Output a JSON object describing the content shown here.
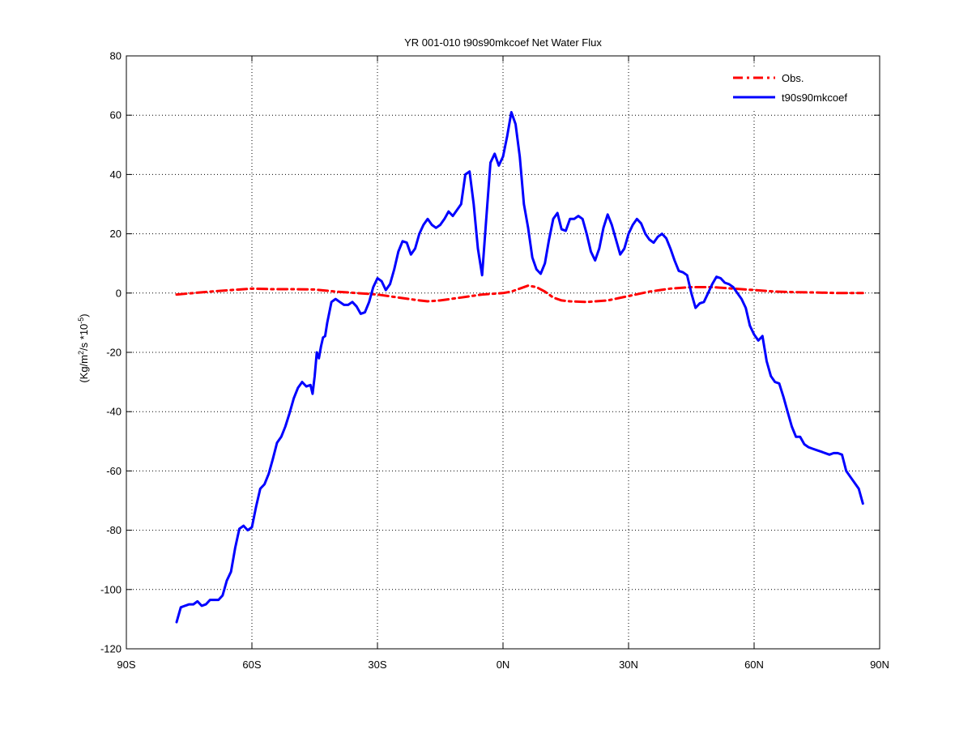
{
  "chart_data": {
    "type": "line",
    "title": "YR 001-010 t90s90mkcoef  Net Water Flux",
    "xlabel": "",
    "ylabel": "(Kg/m²/s *10⁻⁵)",
    "ylabel_parts": {
      "prefix": "(Kg/m",
      "sup1": "2",
      "middle": "/s *10",
      "sup2": "-5",
      "suffix": ")"
    },
    "xlim": [
      -90,
      90
    ],
    "ylim": [
      -120,
      80
    ],
    "x_ticks": [
      -90,
      -60,
      -30,
      0,
      30,
      60,
      90
    ],
    "x_tick_labels": [
      "90S",
      "60S",
      "30S",
      "0N",
      "30N",
      "60N",
      "90N"
    ],
    "y_ticks": [
      -120,
      -100,
      -80,
      -60,
      -40,
      -20,
      0,
      20,
      40,
      60,
      80
    ],
    "y_tick_labels": [
      "-120",
      "-100",
      "-80",
      "-60",
      "-40",
      "-20",
      "0",
      "20",
      "40",
      "60",
      "80"
    ],
    "grid": true,
    "legend_position": "top-right",
    "series": [
      {
        "name": "Obs.",
        "color": "#ff0000",
        "style": "dash-dot",
        "x": [
          -78,
          -70,
          -65,
          -60,
          -55,
          -50,
          -45,
          -40,
          -35,
          -30,
          -25,
          -20,
          -18,
          -15,
          -10,
          -5,
          0,
          2,
          4,
          6,
          8,
          10,
          12,
          14,
          16,
          20,
          25,
          30,
          35,
          40,
          45,
          50,
          55,
          60,
          65,
          70,
          75,
          80,
          85,
          86
        ],
        "y": [
          -0.5,
          0.5,
          1,
          1.5,
          1.3,
          1.3,
          1.2,
          0.5,
          0,
          -0.5,
          -1.5,
          -2.5,
          -2.8,
          -2.5,
          -1.5,
          -0.5,
          0,
          0.5,
          1.5,
          2.5,
          2,
          0.5,
          -1.5,
          -2.5,
          -2.8,
          -3,
          -2.5,
          -1,
          0.5,
          1.5,
          2,
          2,
          1.5,
          1,
          0.5,
          0.3,
          0.2,
          0,
          0,
          0
        ]
      },
      {
        "name": "t90s90mkcoef",
        "color": "#0000ff",
        "style": "solid",
        "x": [
          -78,
          -77,
          -76,
          -75,
          -74,
          -73,
          -72,
          -71,
          -70,
          -69,
          -68,
          -67,
          -66,
          -65,
          -64,
          -63,
          -62,
          -61,
          -60,
          -59,
          -58,
          -57,
          -56,
          -55,
          -54,
          -53,
          -52,
          -51,
          -50,
          -49,
          -48,
          -47,
          -46,
          -45.5,
          -45,
          -44.5,
          -44,
          -43.5,
          -43,
          -42.5,
          -42,
          -41,
          -40,
          -39,
          -38,
          -37,
          -36,
          -35,
          -34,
          -33,
          -32,
          -31,
          -30,
          -29,
          -28,
          -27,
          -26,
          -25,
          -24,
          -23,
          -22,
          -21,
          -20,
          -19,
          -18,
          -17,
          -16,
          -15,
          -14,
          -13,
          -12,
          -11,
          -10,
          -9,
          -8,
          -7,
          -6,
          -5,
          -4,
          -3,
          -2,
          -1,
          0,
          1,
          2,
          3,
          4,
          5,
          6,
          7,
          8,
          9,
          10,
          11,
          12,
          13,
          14,
          15,
          16,
          17,
          18,
          19,
          20,
          21,
          22,
          23,
          24,
          25,
          26,
          27,
          28,
          29,
          30,
          31,
          32,
          33,
          34,
          35,
          36,
          37,
          38,
          39,
          40,
          41,
          42,
          43,
          44,
          45,
          46,
          47,
          48,
          49,
          50,
          51,
          52,
          53,
          54,
          55,
          56,
          57,
          58,
          59,
          60,
          61,
          62,
          63,
          64,
          65,
          66,
          67,
          68,
          69,
          70,
          71,
          72,
          73,
          74,
          75,
          76,
          77,
          78,
          79,
          80,
          81,
          82,
          83,
          84,
          85,
          86
        ],
        "y": [
          -111,
          -106,
          -105.5,
          -105,
          -105,
          -104,
          -105.5,
          -105,
          -103.5,
          -103.5,
          -103.5,
          -102,
          -97,
          -94,
          -86,
          -79.5,
          -78.5,
          -80,
          -79,
          -72,
          -66,
          -64.5,
          -61,
          -56,
          -50.5,
          -48.5,
          -45,
          -40.5,
          -35.5,
          -32,
          -30,
          -31.5,
          -31,
          -34,
          -28,
          -20,
          -22,
          -18,
          -15,
          -14.5,
          -10,
          -3,
          -2,
          -3,
          -4,
          -4,
          -3,
          -4.5,
          -7,
          -6.5,
          -3,
          2,
          5,
          4,
          1,
          3,
          8,
          14,
          17.5,
          17,
          13,
          15,
          20,
          23,
          25,
          23,
          22,
          23,
          25,
          27.5,
          26,
          28,
          30,
          40,
          41,
          30,
          15,
          6,
          25,
          44,
          47,
          43,
          46,
          53,
          61,
          57,
          46,
          30,
          22,
          12,
          8,
          6.5,
          10,
          18,
          25,
          27,
          21.5,
          21,
          25,
          25,
          26,
          25,
          20,
          14,
          11,
          15,
          22,
          26.5,
          23,
          18,
          13,
          15,
          20,
          23,
          25,
          23.5,
          20,
          18,
          17,
          19,
          20,
          18.5,
          15,
          11,
          7.5,
          7,
          6,
          0,
          -5,
          -3.5,
          -3,
          0,
          3,
          5.5,
          5,
          3.5,
          3,
          2,
          0,
          -2,
          -5,
          -11,
          -14,
          -16,
          -14.5,
          -23,
          -28,
          -30,
          -30.5,
          -35,
          -40,
          -45,
          -48.5,
          -48.5,
          -51,
          -52,
          -52.5,
          -53,
          -53.5,
          -54,
          -54.5,
          -54,
          -54,
          -54.5,
          -60,
          -62,
          -64,
          -66,
          -71
        ]
      }
    ]
  }
}
